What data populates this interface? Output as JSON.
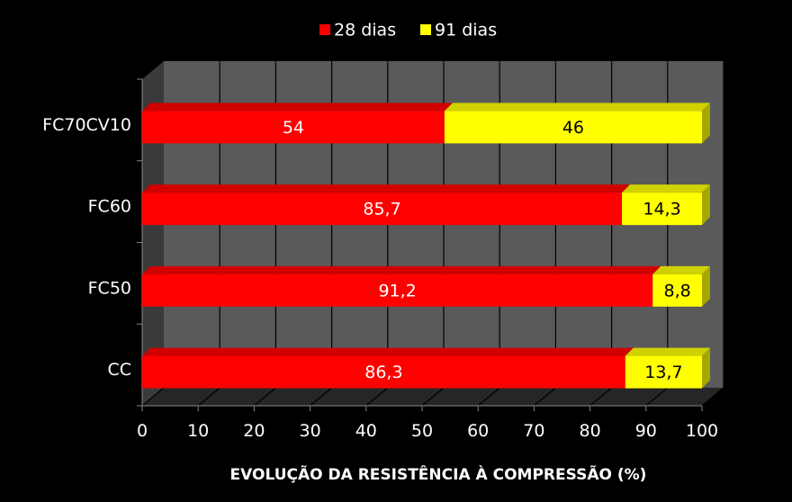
{
  "chart_data": {
    "type": "bar",
    "orientation": "horizontal",
    "stacked": true,
    "categories": [
      "FC70CV10",
      "FC60",
      "FC50",
      "CC"
    ],
    "series": [
      {
        "name": "28 dias",
        "color": "#ff0000",
        "values": [
          54,
          85.7,
          91.2,
          86.3
        ],
        "labels": [
          "54",
          "85,7",
          "91,2",
          "86,3"
        ]
      },
      {
        "name": "91 dias",
        "color": "#ffff00",
        "values": [
          46,
          14.3,
          8.8,
          13.7
        ],
        "labels": [
          "46",
          "14,3",
          "8,8",
          "13,7"
        ]
      }
    ],
    "xlabel": "EVOLUÇÃO DA RESISTÊNCIA À COMPRESSÃO (%)",
    "xlim": [
      0,
      100
    ],
    "xticks": [
      "0",
      "10",
      "20",
      "30",
      "40",
      "50",
      "60",
      "70",
      "80",
      "90",
      "100"
    ],
    "grid": true,
    "legend_position": "top"
  }
}
